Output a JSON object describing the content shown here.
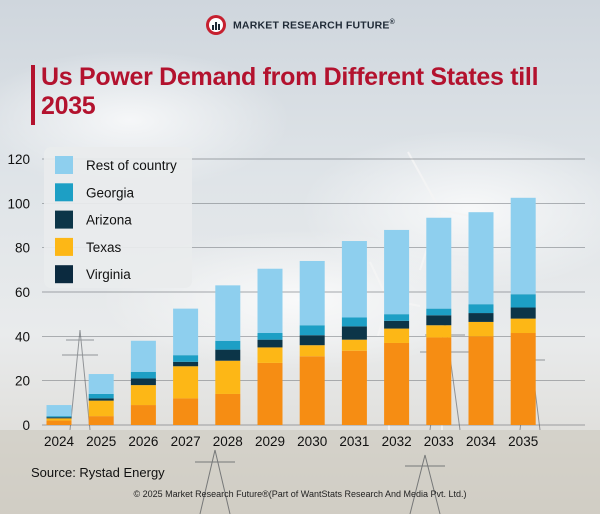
{
  "brand": {
    "name": "MARKET RESEARCH FUTURE",
    "reg": "®"
  },
  "colors": {
    "rest_of_country": "#8ecfee",
    "georgia": "#1d9fc5",
    "arizona": "#0c3548",
    "texas": "#fdb716",
    "virginia": "#f68d13",
    "title": "#b3122e"
  },
  "chart_data": {
    "type": "bar",
    "stacked": true,
    "title": "Us Power Demand from Different States till 2035",
    "xlabel": "",
    "ylabel": "",
    "ylim": [
      0,
      120
    ],
    "yticks": [
      0,
      20,
      40,
      60,
      80,
      100,
      120
    ],
    "categories": [
      "2024",
      "2025",
      "2026",
      "2027",
      "2028",
      "2029",
      "2030",
      "2031",
      "2032",
      "2033",
      "2034",
      "2035"
    ],
    "series": [
      {
        "name": "Virginia",
        "key": "virginia",
        "values": [
          2,
          4,
          9,
          12,
          14,
          28,
          31,
          33.5,
          37,
          39.5,
          40,
          41.5
        ]
      },
      {
        "name": "Texas",
        "key": "texas",
        "values": [
          1,
          7,
          9,
          14.5,
          15,
          7,
          5,
          5,
          6.5,
          5.5,
          6.5,
          6.5
        ]
      },
      {
        "name": "Arizona",
        "key": "arizona",
        "values": [
          0.5,
          1,
          3,
          2,
          5,
          3.5,
          4.5,
          6,
          3.5,
          4.5,
          4,
          5
        ]
      },
      {
        "name": "Georgia",
        "key": "georgia",
        "values": [
          0.5,
          2,
          3,
          3,
          4,
          3,
          4.5,
          4,
          3,
          3,
          4,
          6
        ]
      },
      {
        "name": "Rest of country",
        "key": "rest_of_country",
        "values": [
          5,
          9,
          14,
          21,
          25,
          29,
          29,
          34.5,
          38,
          41,
          41.5,
          43.5
        ]
      }
    ],
    "legend": {
      "position": "top-left",
      "order": [
        "Rest of country",
        "Georgia",
        "Arizona",
        "Texas",
        "Virginia"
      ]
    },
    "legend_swatch_colors": {
      "Rest of country": "#8ecfee",
      "Georgia": "#1d9fc5",
      "Arizona": "#0c3548",
      "Texas": "#fdb716",
      "Virginia": "#0b2a3f"
    }
  },
  "source": "Source: Rystad Energy",
  "footer": "© 2025 Market Research Future®(Part of WantStats Research And Media Pvt. Ltd.)"
}
